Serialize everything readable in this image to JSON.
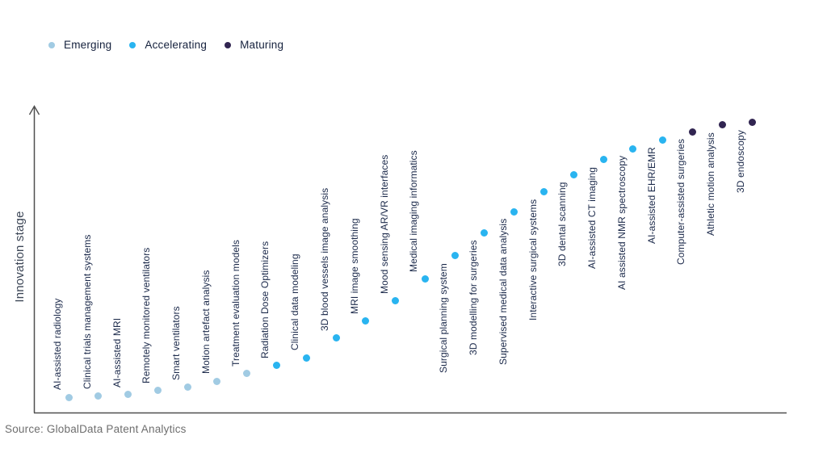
{
  "legend": {
    "items": [
      {
        "label": "Emerging",
        "color": "#a1cbe3"
      },
      {
        "label": "Accelerating",
        "color": "#29b4f0"
      },
      {
        "label": "Maturing",
        "color": "#312551"
      }
    ]
  },
  "source": "Source: GlobalData Patent Analytics",
  "chart_data": {
    "type": "scatter",
    "title": "",
    "xlabel": "",
    "ylabel": "Innovation stage",
    "ylim": [
      0,
      100
    ],
    "grid": false,
    "legend_position": "top-left",
    "stage_colors": {
      "Emerging": "#a1cbe3",
      "Accelerating": "#29b4f0",
      "Maturing": "#312551"
    },
    "points": [
      {
        "name": "AI-assisted radiology",
        "stage": "Emerging",
        "value": 5.0
      },
      {
        "name": "Clinical trials management systems",
        "stage": "Emerging",
        "value": 5.5
      },
      {
        "name": "AI-assisted MRI",
        "stage": "Emerging",
        "value": 6.0
      },
      {
        "name": "Remotely monitored ventilators",
        "stage": "Emerging",
        "value": 7.3
      },
      {
        "name": "Smart ventilators",
        "stage": "Emerging",
        "value": 8.4
      },
      {
        "name": "Motion artefact analysis",
        "stage": "Emerging",
        "value": 10.5
      },
      {
        "name": "Treatment evaluation models",
        "stage": "Emerging",
        "value": 13.0
      },
      {
        "name": "Radiation Dose Optimizers",
        "stage": "Accelerating",
        "value": 15.7
      },
      {
        "name": "Clinical data modeling",
        "stage": "Accelerating",
        "value": 18.3
      },
      {
        "name": "3D blood vessels image analysis",
        "stage": "Accelerating",
        "value": 24.8
      },
      {
        "name": "MRI image smoothing",
        "stage": "Accelerating",
        "value": 30.5
      },
      {
        "name": "Mood sensing AR/VR interfaces",
        "stage": "Accelerating",
        "value": 37.2
      },
      {
        "name": "Medical imaging informatics",
        "stage": "Accelerating",
        "value": 44.5
      },
      {
        "name": "Surgical planning system",
        "stage": "Accelerating",
        "value": 52.3
      },
      {
        "name": "3D modelling for surgeries",
        "stage": "Accelerating",
        "value": 60.1
      },
      {
        "name": "Supervised medical data analysis",
        "stage": "Accelerating",
        "value": 67.1
      },
      {
        "name": "Interactive surgical systems",
        "stage": "Accelerating",
        "value": 73.6
      },
      {
        "name": "3D dental scanning",
        "stage": "Accelerating",
        "value": 79.5
      },
      {
        "name": "AI-assisted CT imaging",
        "stage": "Accelerating",
        "value": 84.4
      },
      {
        "name": "AI assisted NMR spectroscopy",
        "stage": "Accelerating",
        "value": 88.1
      },
      {
        "name": "AI-assisted EHR/EMR",
        "stage": "Accelerating",
        "value": 91.1
      },
      {
        "name": "Computer-assisted surgeries",
        "stage": "Maturing",
        "value": 93.8
      },
      {
        "name": "Athletic motion analysis",
        "stage": "Maturing",
        "value": 96.0
      },
      {
        "name": "3D endoscopy",
        "stage": "Maturing",
        "value": 96.8
      }
    ]
  }
}
